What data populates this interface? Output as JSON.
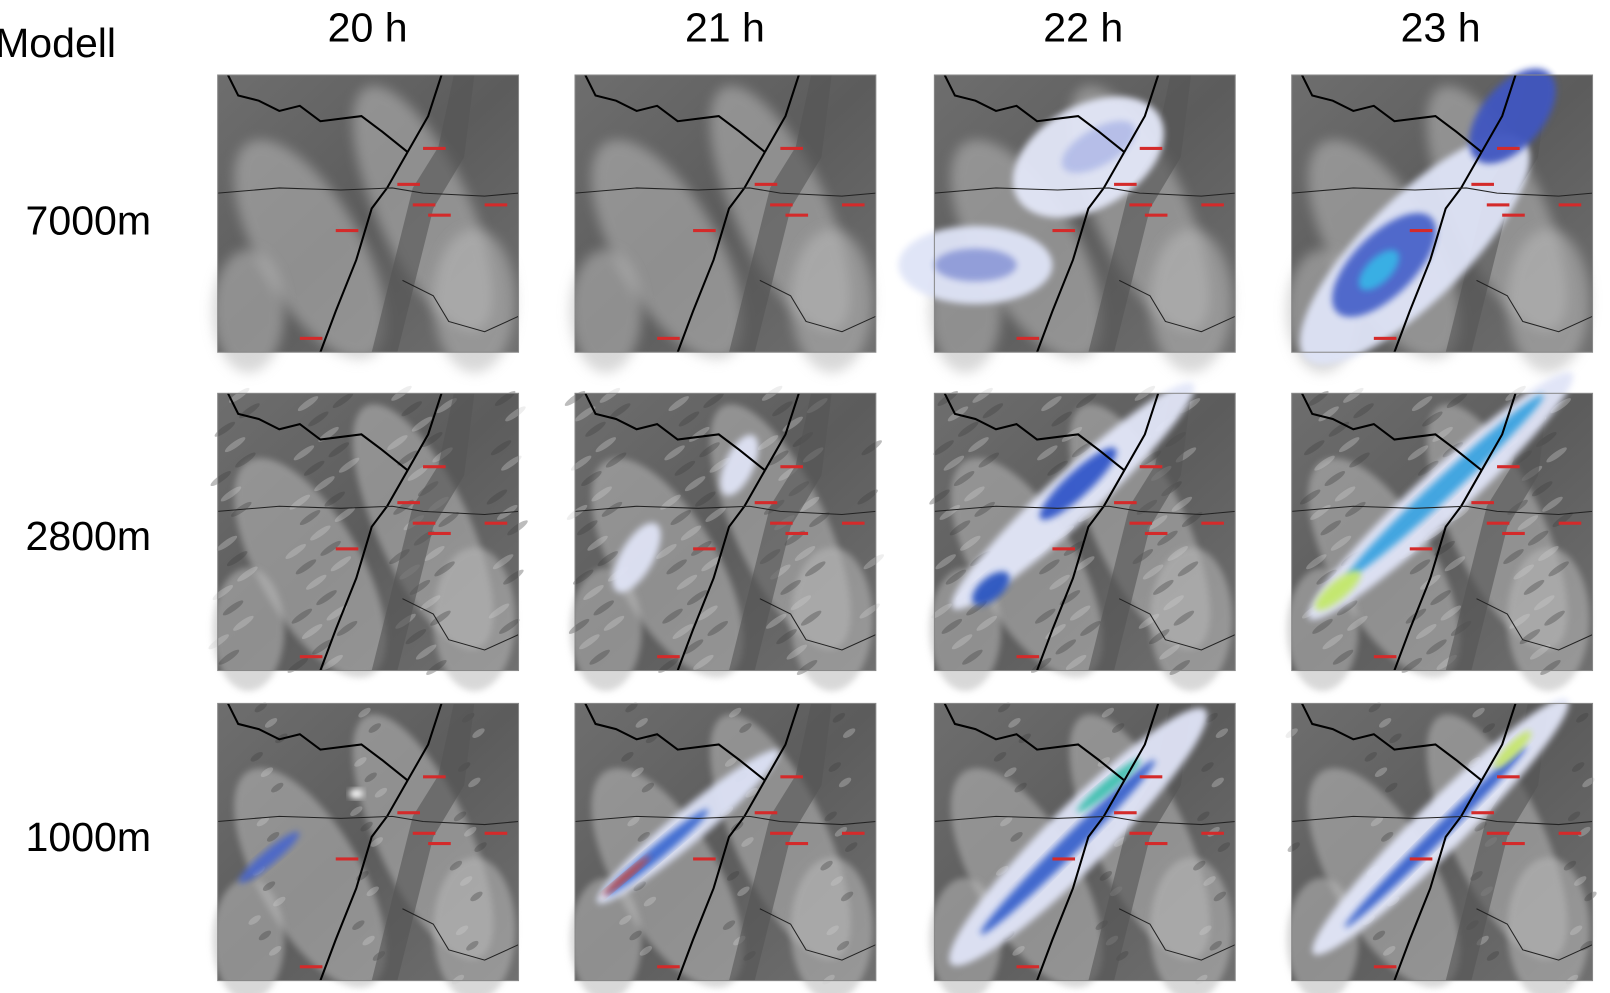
{
  "header": {
    "corner_label": "Modell",
    "columns": [
      "20 h",
      "21 h",
      "22 h",
      "23 h"
    ]
  },
  "rows": [
    {
      "label": "7000m"
    },
    {
      "label": "2800m"
    },
    {
      "label": "1000m"
    }
  ]
}
